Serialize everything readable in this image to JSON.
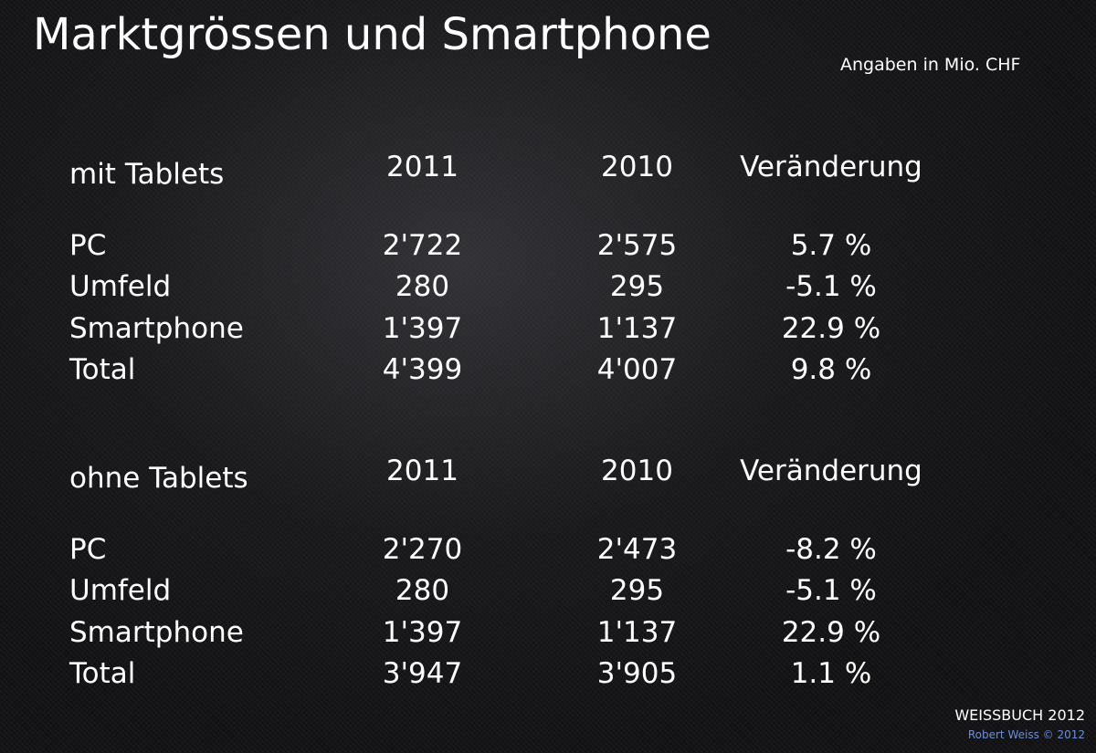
{
  "title": "Marktgrössen und Smartphone",
  "units": "Angaben in Mio. CHF",
  "sections": [
    {
      "label": "mit Tablets",
      "columns": [
        "2011",
        "2010",
        "Veränderung"
      ],
      "rows": [
        {
          "label": "PC",
          "v2011": "2'722",
          "v2010": "2'575",
          "change": "5.7 %"
        },
        {
          "label": "Umfeld",
          "v2011": "280",
          "v2010": "295",
          "change": "-5.1 %"
        },
        {
          "label": "Smartphone",
          "v2011": "1'397",
          "v2010": "1'137",
          "change": "22.9 %"
        },
        {
          "label": "Total",
          "v2011": "4'399",
          "v2010": "4'007",
          "change": "9.8 %"
        }
      ]
    },
    {
      "label": "ohne Tablets",
      "columns": [
        "2011",
        "2010",
        "Veränderung"
      ],
      "rows": [
        {
          "label": "PC",
          "v2011": "2'270",
          "v2010": "2'473",
          "change": "-8.2 %"
        },
        {
          "label": "Umfeld",
          "v2011": "280",
          "v2010": "295",
          "change": "-5.1 %"
        },
        {
          "label": "Smartphone",
          "v2011": "1'397",
          "v2010": "1'137",
          "change": "22.9 %"
        },
        {
          "label": "Total",
          "v2011": "3'947",
          "v2010": "3'905",
          "change": "1.1 %"
        }
      ]
    }
  ],
  "footer": {
    "brand": "WEISSBUCH 2012",
    "copyright": "Robert Weiss © 2012"
  }
}
